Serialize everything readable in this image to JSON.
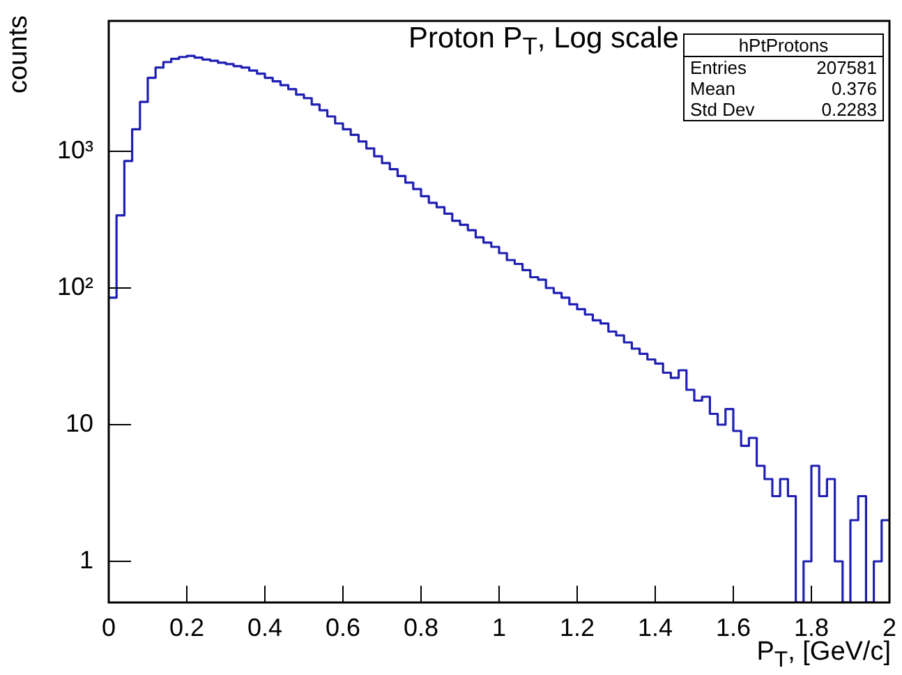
{
  "chart_data": {
    "type": "histogram",
    "title": "Proton P$_{T}$, Log scale",
    "xlabel": "P$_{T}$, [GeV/c]",
    "ylabel": "counts",
    "color": "#1f1fb4",
    "log": "y",
    "bins": [
      0,
      0.02,
      0.04,
      0.06,
      0.08,
      0.1,
      0.12,
      0.14,
      0.16,
      0.18,
      0.2,
      0.22,
      0.24,
      0.26,
      0.28,
      0.3,
      0.32,
      0.34,
      0.36,
      0.38,
      0.4,
      0.42,
      0.44,
      0.46,
      0.48,
      0.5,
      0.52,
      0.54,
      0.56,
      0.58,
      0.6,
      0.62,
      0.64,
      0.66,
      0.68,
      0.7,
      0.72,
      0.74,
      0.76,
      0.78,
      0.8,
      0.82,
      0.84,
      0.86,
      0.88,
      0.9,
      0.92,
      0.94,
      0.96,
      0.98,
      1,
      1.02,
      1.04,
      1.06,
      1.08,
      1.1,
      1.12,
      1.14,
      1.16,
      1.18,
      1.2,
      1.22,
      1.24,
      1.26,
      1.28,
      1.3,
      1.32,
      1.34,
      1.36,
      1.38,
      1.4,
      1.42,
      1.44,
      1.46,
      1.48,
      1.5,
      1.52,
      1.54,
      1.56,
      1.58,
      1.6,
      1.62,
      1.64,
      1.66,
      1.68,
      1.7,
      1.72,
      1.74,
      1.76,
      1.78,
      1.8,
      1.82,
      1.84,
      1.86,
      1.88,
      1.9,
      1.92,
      1.94,
      1.96,
      1.98,
      2
    ],
    "values": [
      85,
      340,
      850,
      1450,
      2300,
      3450,
      4100,
      4500,
      4750,
      4900,
      5000,
      4850,
      4700,
      4600,
      4450,
      4350,
      4200,
      4100,
      3900,
      3700,
      3450,
      3250,
      3050,
      2850,
      2600,
      2450,
      2200,
      2000,
      1800,
      1600,
      1450,
      1320,
      1180,
      1050,
      920,
      820,
      740,
      660,
      590,
      530,
      470,
      420,
      390,
      350,
      310,
      290,
      265,
      235,
      215,
      200,
      180,
      160,
      150,
      135,
      120,
      115,
      100,
      92,
      85,
      76,
      70,
      64,
      58,
      55,
      48,
      45,
      40,
      36,
      33,
      30,
      28,
      24,
      22,
      25,
      18,
      15,
      16,
      12,
      10,
      13,
      9,
      7,
      8,
      5,
      4,
      3,
      4,
      3,
      null,
      1,
      5,
      3,
      4,
      1,
      null,
      2,
      3,
      null,
      1,
      2
    ],
    "xlim": [
      0,
      2
    ],
    "xticks": [
      0,
      0.2,
      0.4,
      0.6,
      0.8,
      1,
      1.2,
      1.4,
      1.6,
      1.8,
      2
    ],
    "ylim": [
      0.5,
      9000
    ],
    "yticks": [
      1,
      10,
      {
        "value": 100,
        "label": "10²"
      },
      {
        "value": 1000,
        "label": "10³"
      }
    ],
    "annotations": [
      "hPtProtons",
      "Entries 207581",
      "Mean 0.376",
      "Std Dev 0.2283"
    ]
  }
}
